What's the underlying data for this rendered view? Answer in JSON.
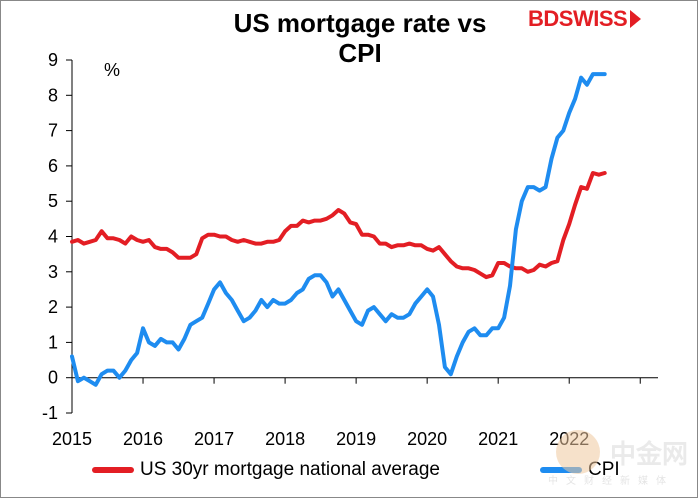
{
  "header": {
    "title_line1": "US mortgage rate vs",
    "title_line2": "CPI",
    "logo_bd": "BD",
    "logo_swiss": "SWISS"
  },
  "watermark": {
    "text": "中金网",
    "sub": "中文财经新媒体",
    "url": "CNGOLD.COM"
  },
  "colors": {
    "mortgage": "#e31e24",
    "cpi": "#1e8cf0"
  },
  "chart_data": {
    "type": "line",
    "unit_label": "%",
    "ylim": [
      -1,
      9
    ],
    "yticks": [
      "-1",
      "0",
      "1",
      "2",
      "3",
      "4",
      "5",
      "6",
      "7",
      "8",
      "9"
    ],
    "xlim": [
      2015,
      2023.25
    ],
    "xticks": [
      "2015",
      "2016",
      "2017",
      "2018",
      "2019",
      "2020",
      "2021",
      "2022"
    ],
    "legend_position": "bottom",
    "series": [
      {
        "name": "US 30yr mortgage national average",
        "x": [
          2015.0,
          2015.083,
          2015.167,
          2015.25,
          2015.333,
          2015.417,
          2015.5,
          2015.583,
          2015.667,
          2015.75,
          2015.833,
          2015.917,
          2016.0,
          2016.083,
          2016.167,
          2016.25,
          2016.333,
          2016.417,
          2016.5,
          2016.583,
          2016.667,
          2016.75,
          2016.833,
          2016.917,
          2017.0,
          2017.083,
          2017.167,
          2017.25,
          2017.333,
          2017.417,
          2017.5,
          2017.583,
          2017.667,
          2017.75,
          2017.833,
          2017.917,
          2018.0,
          2018.083,
          2018.167,
          2018.25,
          2018.333,
          2018.417,
          2018.5,
          2018.583,
          2018.667,
          2018.75,
          2018.833,
          2018.917,
          2019.0,
          2019.083,
          2019.167,
          2019.25,
          2019.333,
          2019.417,
          2019.5,
          2019.583,
          2019.667,
          2019.75,
          2019.833,
          2019.917,
          2020.0,
          2020.083,
          2020.167,
          2020.25,
          2020.333,
          2020.417,
          2020.5,
          2020.583,
          2020.667,
          2020.75,
          2020.833,
          2020.917,
          2021.0,
          2021.083,
          2021.167,
          2021.25,
          2021.333,
          2021.417,
          2021.5,
          2021.583,
          2021.667,
          2021.75,
          2021.833,
          2021.917,
          2022.0,
          2022.083,
          2022.167,
          2022.25,
          2022.333,
          2022.417,
          2022.5
        ],
        "y": [
          3.85,
          3.9,
          3.8,
          3.85,
          3.9,
          4.15,
          3.95,
          3.95,
          3.9,
          3.8,
          4.0,
          3.9,
          3.85,
          3.9,
          3.7,
          3.65,
          3.65,
          3.55,
          3.4,
          3.4,
          3.4,
          3.5,
          3.95,
          4.05,
          4.05,
          4.0,
          4.0,
          3.9,
          3.85,
          3.9,
          3.85,
          3.8,
          3.8,
          3.85,
          3.85,
          3.9,
          4.15,
          4.3,
          4.3,
          4.45,
          4.4,
          4.45,
          4.45,
          4.5,
          4.6,
          4.75,
          4.65,
          4.4,
          4.35,
          4.05,
          4.05,
          4.0,
          3.8,
          3.8,
          3.7,
          3.75,
          3.75,
          3.8,
          3.75,
          3.75,
          3.65,
          3.6,
          3.7,
          3.5,
          3.3,
          3.15,
          3.1,
          3.1,
          3.05,
          2.95,
          2.85,
          2.9,
          3.25,
          3.25,
          3.15,
          3.1,
          3.1,
          3.0,
          3.05,
          3.2,
          3.15,
          3.25,
          3.3,
          3.9,
          4.35,
          4.9,
          5.4,
          5.35,
          5.8,
          5.75,
          5.8
        ]
      },
      {
        "name": "CPI",
        "x": [
          2015.0,
          2015.083,
          2015.167,
          2015.25,
          2015.333,
          2015.417,
          2015.5,
          2015.583,
          2015.667,
          2015.75,
          2015.833,
          2015.917,
          2016.0,
          2016.083,
          2016.167,
          2016.25,
          2016.333,
          2016.417,
          2016.5,
          2016.583,
          2016.667,
          2016.75,
          2016.833,
          2016.917,
          2017.0,
          2017.083,
          2017.167,
          2017.25,
          2017.333,
          2017.417,
          2017.5,
          2017.583,
          2017.667,
          2017.75,
          2017.833,
          2017.917,
          2018.0,
          2018.083,
          2018.167,
          2018.25,
          2018.333,
          2018.417,
          2018.5,
          2018.583,
          2018.667,
          2018.75,
          2018.833,
          2018.917,
          2019.0,
          2019.083,
          2019.167,
          2019.25,
          2019.333,
          2019.417,
          2019.5,
          2019.583,
          2019.667,
          2019.75,
          2019.833,
          2019.917,
          2020.0,
          2020.083,
          2020.167,
          2020.25,
          2020.333,
          2020.417,
          2020.5,
          2020.583,
          2020.667,
          2020.75,
          2020.833,
          2020.917,
          2021.0,
          2021.083,
          2021.167,
          2021.25,
          2021.333,
          2021.417,
          2021.5,
          2021.583,
          2021.667,
          2021.75,
          2021.833,
          2021.917,
          2022.0,
          2022.083,
          2022.167,
          2022.25,
          2022.333,
          2022.417,
          2022.5
        ],
        "y": [
          0.6,
          -0.1,
          0.0,
          -0.1,
          -0.2,
          0.1,
          0.2,
          0.2,
          0.0,
          0.2,
          0.5,
          0.7,
          1.4,
          1.0,
          0.9,
          1.1,
          1.0,
          1.0,
          0.8,
          1.1,
          1.5,
          1.6,
          1.7,
          2.1,
          2.5,
          2.7,
          2.4,
          2.2,
          1.9,
          1.6,
          1.7,
          1.9,
          2.2,
          2.0,
          2.2,
          2.1,
          2.1,
          2.2,
          2.4,
          2.5,
          2.8,
          2.9,
          2.9,
          2.7,
          2.3,
          2.5,
          2.2,
          1.9,
          1.6,
          1.5,
          1.9,
          2.0,
          1.8,
          1.6,
          1.8,
          1.7,
          1.7,
          1.8,
          2.1,
          2.3,
          2.5,
          2.3,
          1.5,
          0.3,
          0.1,
          0.6,
          1.0,
          1.3,
          1.4,
          1.2,
          1.2,
          1.4,
          1.4,
          1.7,
          2.6,
          4.2,
          5.0,
          5.4,
          5.4,
          5.3,
          5.4,
          6.2,
          6.8,
          7.0,
          7.5,
          7.9,
          8.5,
          8.3,
          8.6,
          8.6,
          8.6
        ]
      }
    ]
  }
}
